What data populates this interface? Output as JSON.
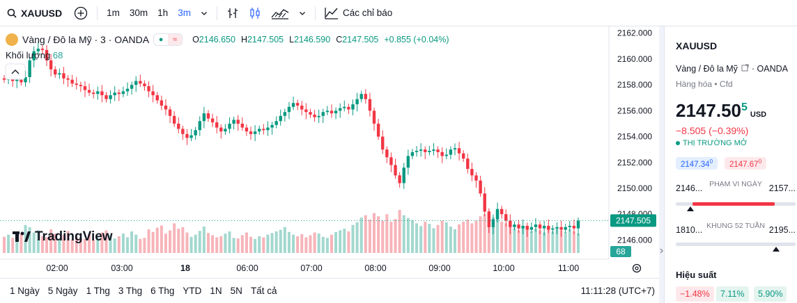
{
  "toolbar": {
    "symbol": "XAUUSD",
    "timeframes": [
      "1m",
      "30m",
      "1h",
      "3m"
    ],
    "active_timeframe": "3m",
    "indicators_label": "Các chỉ báo"
  },
  "legend": {
    "title": "Vàng / Đô la Mỹ · 3 · OANDA",
    "o_label": "O",
    "o": "2146.650",
    "h_label": "H",
    "h": "2147.505",
    "l_label": "L",
    "l": "2146.590",
    "c_label": "C",
    "c": "2147.505",
    "change": "+0.855 (+0.04%)",
    "volume_label": "Khối lượng",
    "volume_value": "68"
  },
  "watermark": "TradingView",
  "chart_data": {
    "type": "candlestick",
    "y_ticks": [
      "2162.000",
      "2160.000",
      "2158.000",
      "2156.000",
      "2154.000",
      "2152.000",
      "2150.000",
      "2148.000",
      "2146.000"
    ],
    "ylim": [
      2145,
      2162.2
    ],
    "x_ticks": [
      "02:00",
      "03:00",
      "18",
      "06:00",
      "07:00",
      "08:00",
      "09:00",
      "10:00",
      "11:00"
    ],
    "last_price_label": "2147.505",
    "last_volume_label": "68",
    "close_series": [
      2158.4,
      2158.5,
      2158.3,
      2158.4,
      2158.2,
      2158.6,
      2159.9,
      2160.6,
      2160.8,
      2160.7,
      2159.9,
      2159.2,
      2158.8,
      2158.9,
      2158.5,
      2158.4,
      2158.1,
      2158.0,
      2157.9,
      2157.6,
      2157.4,
      2157.3,
      2157.5,
      2157.2,
      2156.9,
      2157.2,
      2157.4,
      2157.3,
      2157.5,
      2157.7,
      2158.0,
      2158.3,
      2158.1,
      2157.9,
      2157.5,
      2157.2,
      2156.8,
      2156.4,
      2156.1,
      2155.6,
      2155.0,
      2154.6,
      2154.2,
      2153.9,
      2154.1,
      2154.5,
      2155.2,
      2155.8,
      2155.4,
      2155.1,
      2154.7,
      2154.4,
      2154.6,
      2155.0,
      2155.3,
      2155.0,
      2154.7,
      2154.4,
      2154.2,
      2154.4,
      2154.6,
      2154.5,
      2154.7,
      2154.9,
      2155.2,
      2155.6,
      2155.9,
      2156.3,
      2156.6,
      2156.4,
      2156.1,
      2155.9,
      2155.7,
      2155.5,
      2155.6,
      2155.9,
      2156.0,
      2155.8,
      2156.0,
      2156.2,
      2156.3,
      2156.1,
      2156.5,
      2156.9,
      2157.3,
      2156.9,
      2156.0,
      2155.0,
      2154.0,
      2153.0,
      2152.4,
      2151.8,
      2151.0,
      2150.4,
      2151.6,
      2152.5,
      2152.8,
      2152.9,
      2153.0,
      2152.8,
      2152.9,
      2153.0,
      2152.8,
      2152.5,
      2152.6,
      2153.0,
      2153.1,
      2152.7,
      2152.3,
      2151.5,
      2151.0,
      2150.6,
      2149.6,
      2148.2,
      2147.0,
      2147.6,
      2148.4,
      2148.0,
      2147.5,
      2147.0,
      2147.2,
      2146.9,
      2147.1,
      2146.8,
      2147.0,
      2147.2,
      2146.9,
      2147.1,
      2146.8,
      2146.9,
      2147.0,
      2146.8,
      2147.0,
      2147.1,
      2146.9,
      2147.5
    ],
    "volume_series": [
      30,
      34,
      28,
      40,
      35,
      52,
      48,
      38,
      42,
      31,
      29,
      44,
      36,
      27,
      33,
      41,
      25,
      30,
      28,
      26,
      35,
      24,
      29,
      38,
      42,
      33,
      27,
      31,
      36,
      29,
      40,
      34,
      26,
      28,
      44,
      39,
      47,
      51,
      36,
      42,
      55,
      45,
      48,
      38,
      30,
      34,
      41,
      49,
      37,
      33,
      29,
      31,
      36,
      40,
      28,
      27,
      33,
      38,
      30,
      26,
      31,
      29,
      34,
      37,
      40,
      43,
      48,
      39,
      34,
      31,
      35,
      29,
      33,
      38,
      36,
      30,
      28,
      34,
      39,
      42,
      45,
      40,
      52,
      57,
      66,
      70,
      62,
      74,
      68,
      60,
      72,
      58,
      63,
      80,
      70,
      65,
      61,
      55,
      50,
      58,
      54,
      46,
      52,
      60,
      57,
      49,
      44,
      53,
      58,
      62,
      55,
      60,
      68,
      72,
      78,
      66,
      62,
      58,
      55,
      50,
      46,
      42,
      48,
      44,
      40,
      45,
      42,
      38,
      44,
      40,
      46,
      42,
      39,
      44,
      40,
      36
    ]
  },
  "sidepanel": {
    "symbol": "XAUUSD",
    "name": "Vàng / Đô la Mỹ",
    "exchange": "OANDA",
    "category": "Hàng hóa",
    "type": "Cfd",
    "price_main": "2147.50",
    "price_sup": "5",
    "currency": "USD",
    "change": "−8.505 (−0.39%)",
    "status": "THỊ TRƯỜNG MỞ",
    "bid": "2147.34",
    "bid_sup": "0",
    "ask": "2147.67",
    "ask_sup": "0",
    "day_low": "2146...",
    "day_high": "2157...",
    "day_label": "PHẠM VI NGÀY",
    "week_low": "1810...",
    "week_high": "2195...",
    "week_label": "KHUNG 52 TUẦN",
    "perf_title": "Hiệu suất",
    "perf": [
      "−1.48%",
      "7.11%",
      "5.90%"
    ]
  },
  "bottombar": {
    "ranges": [
      "1 Ngày",
      "5 Ngày",
      "1 Thg",
      "3 Thg",
      "6 Thg",
      "YTD",
      "1N",
      "5N",
      "Tất cả"
    ],
    "time": "11:11:28 (UTC+7)"
  },
  "colors": {
    "up": "#089981",
    "down": "#f23645",
    "accent": "#2962ff"
  }
}
